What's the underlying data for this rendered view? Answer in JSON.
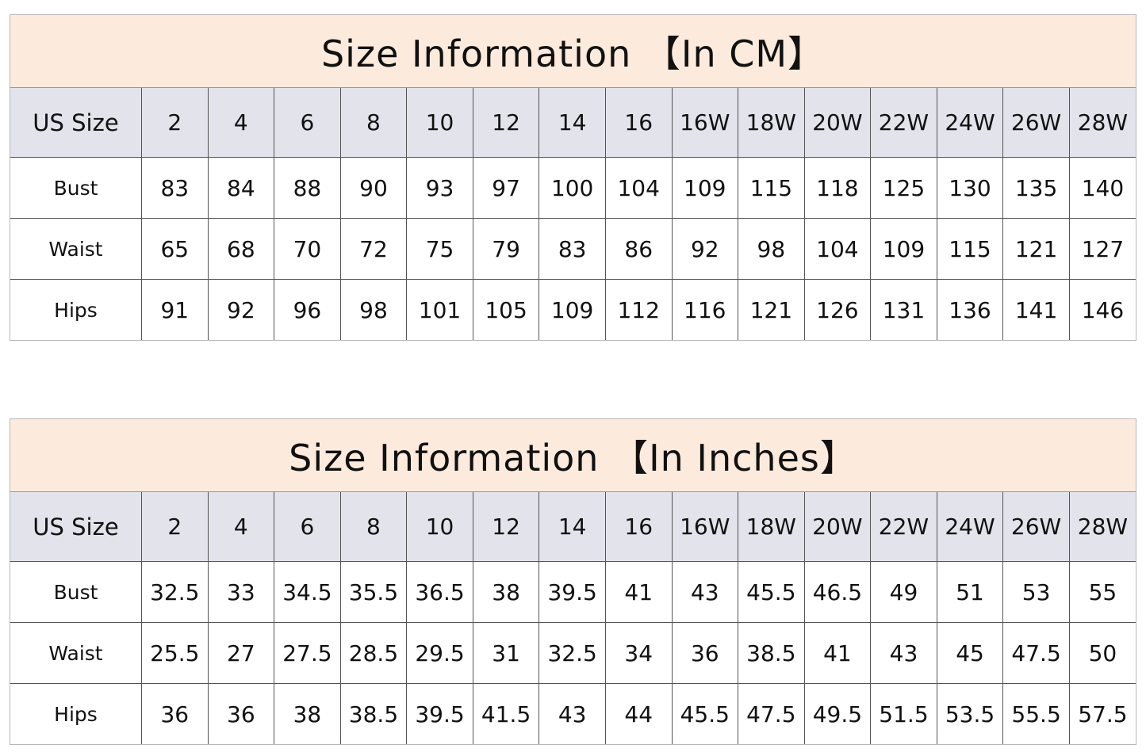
{
  "tables": [
    {
      "title": "Size Information 【In CM】",
      "header_label": "US Size",
      "sizes": [
        "2",
        "4",
        "6",
        "8",
        "10",
        "12",
        "14",
        "16",
        "16W",
        "18W",
        "20W",
        "22W",
        "24W",
        "26W",
        "28W"
      ],
      "rows": [
        {
          "label": "Bust",
          "values": [
            "83",
            "84",
            "88",
            "90",
            "93",
            "97",
            "100",
            "104",
            "109",
            "115",
            "118",
            "125",
            "130",
            "135",
            "140"
          ]
        },
        {
          "label": "Waist",
          "values": [
            "65",
            "68",
            "70",
            "72",
            "75",
            "79",
            "83",
            "86",
            "92",
            "98",
            "104",
            "109",
            "115",
            "121",
            "127"
          ]
        },
        {
          "label": "Hips",
          "values": [
            "91",
            "92",
            "96",
            "98",
            "101",
            "105",
            "109",
            "112",
            "116",
            "121",
            "126",
            "131",
            "136",
            "141",
            "146"
          ]
        }
      ]
    },
    {
      "title": "Size Information 【In Inches】",
      "header_label": "US Size",
      "sizes": [
        "2",
        "4",
        "6",
        "8",
        "10",
        "12",
        "14",
        "16",
        "16W",
        "18W",
        "20W",
        "22W",
        "24W",
        "26W",
        "28W"
      ],
      "rows": [
        {
          "label": "Bust",
          "values": [
            "32.5",
            "33",
            "34.5",
            "35.5",
            "36.5",
            "38",
            "39.5",
            "41",
            "43",
            "45.5",
            "46.5",
            "49",
            "51",
            "53",
            "55"
          ]
        },
        {
          "label": "Waist",
          "values": [
            "25.5",
            "27",
            "27.5",
            "28.5",
            "29.5",
            "31",
            "32.5",
            "34",
            "36",
            "38.5",
            "41",
            "43",
            "45",
            "47.5",
            "50"
          ]
        },
        {
          "label": "Hips",
          "values": [
            "36",
            "36",
            "38",
            "38.5",
            "39.5",
            "41.5",
            "43",
            "44",
            "45.5",
            "47.5",
            "49.5",
            "51.5",
            "53.5",
            "55.5",
            "57.5"
          ]
        }
      ]
    }
  ],
  "colors": {
    "title_bg": "#fcebdc",
    "header_bg": "#e2e3eb"
  }
}
